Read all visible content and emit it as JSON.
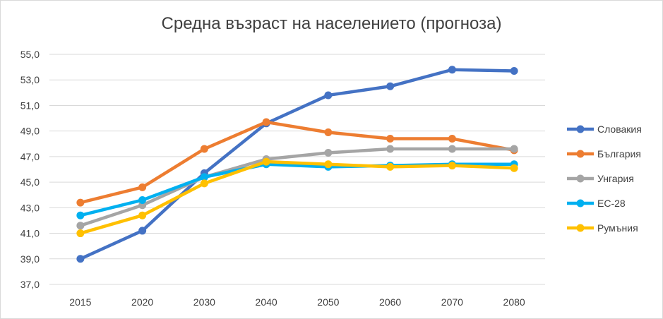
{
  "chart_data": {
    "type": "line",
    "title": "Средна възраст на населението (прогноза)",
    "categories": [
      "2015",
      "2020",
      "2030",
      "2040",
      "2050",
      "2060",
      "2070",
      "2080"
    ],
    "ylim": [
      37.0,
      55.0
    ],
    "ytick_step": 2.0,
    "yticks": [
      "37,0",
      "39,0",
      "41,0",
      "43,0",
      "45,0",
      "47,0",
      "49,0",
      "51,0",
      "53,0",
      "55,0"
    ],
    "grid": true,
    "legend_position": "right",
    "series": [
      {
        "name": "Словакия",
        "color": "#4472C4",
        "values": [
          39.0,
          41.2,
          45.7,
          49.6,
          51.8,
          52.5,
          53.8,
          53.7
        ]
      },
      {
        "name": "България",
        "color": "#ED7D31",
        "values": [
          43.4,
          44.6,
          47.6,
          49.7,
          48.9,
          48.4,
          48.4,
          47.5
        ]
      },
      {
        "name": "Унгария",
        "color": "#A5A5A5",
        "values": [
          41.6,
          43.2,
          45.4,
          46.8,
          47.3,
          47.6,
          47.6,
          47.6
        ]
      },
      {
        "name": "ЕС-28",
        "color": "#00B0F0",
        "values": [
          42.4,
          43.6,
          45.4,
          46.4,
          46.2,
          46.3,
          46.4,
          46.4
        ]
      },
      {
        "name": "Румъния",
        "color": "#FFC000",
        "values": [
          41.0,
          42.4,
          44.9,
          46.6,
          46.4,
          46.2,
          46.3,
          46.1
        ]
      }
    ]
  }
}
